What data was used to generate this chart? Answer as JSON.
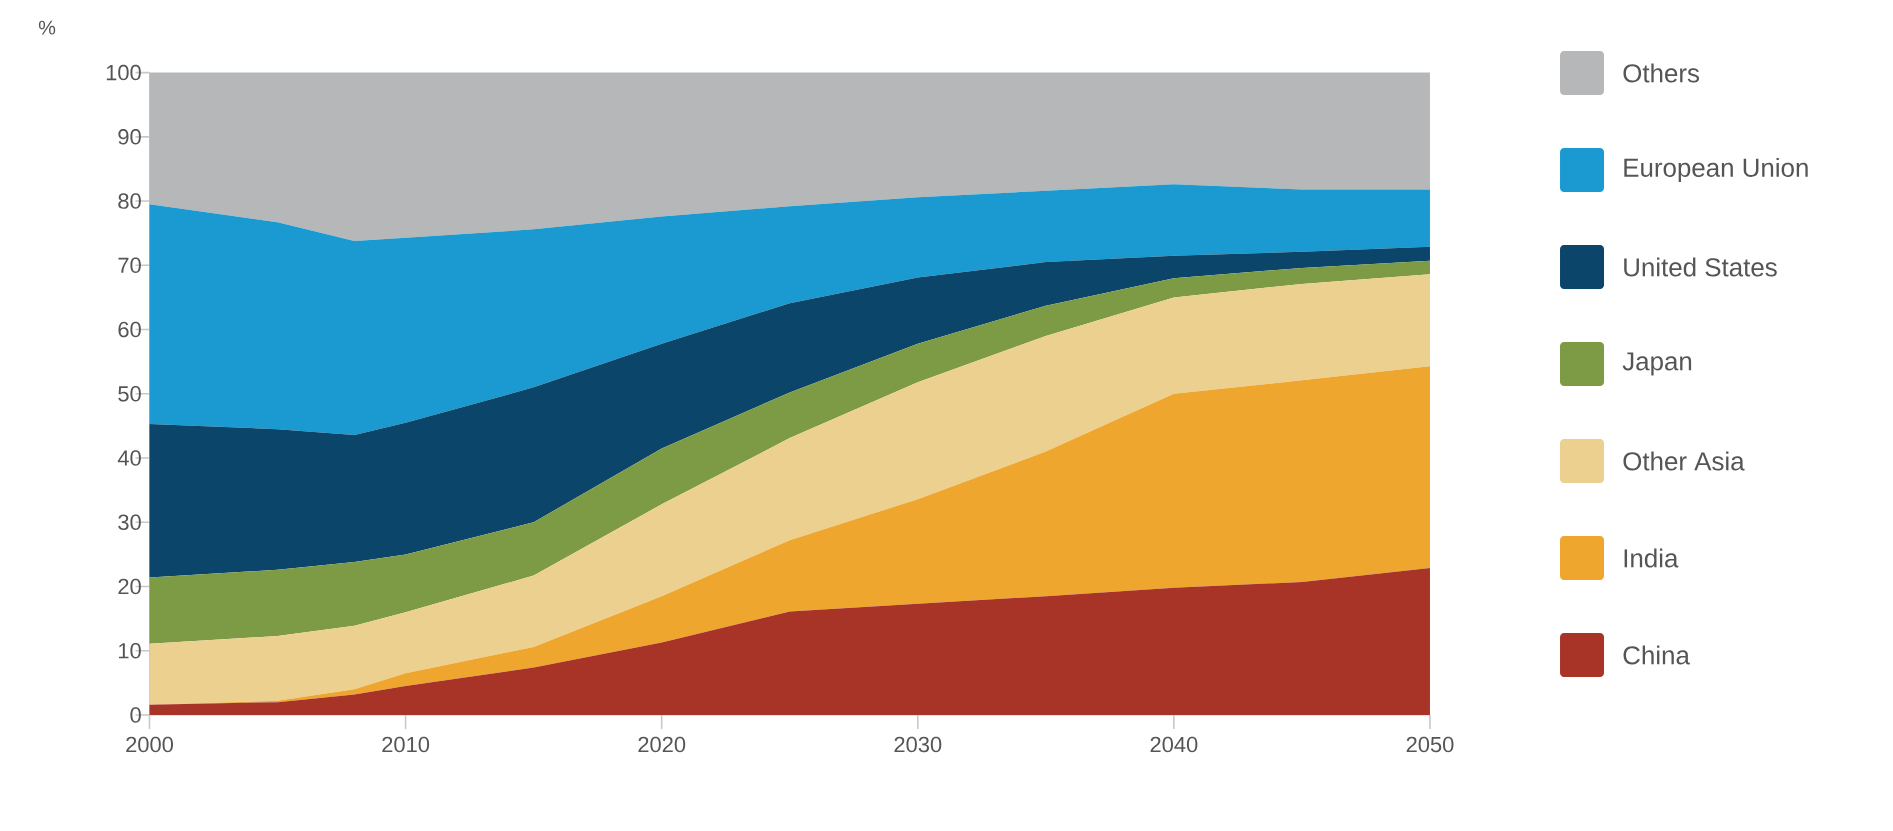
{
  "chart_data": {
    "type": "area",
    "stacked": true,
    "ylabel": "%",
    "x": [
      2000,
      2005,
      2008,
      2010,
      2015,
      2020,
      2025,
      2030,
      2035,
      2040,
      2045,
      2050
    ],
    "xlim": [
      2000,
      2050
    ],
    "xticks": [
      2000,
      2010,
      2020,
      2030,
      2040,
      2050
    ],
    "ylim": [
      0,
      100
    ],
    "yticks": [
      0,
      10,
      20,
      30,
      40,
      50,
      60,
      70,
      80,
      90,
      100
    ],
    "legend": "right",
    "series": [
      {
        "name": "China",
        "color": "#a83428",
        "values": [
          1.6,
          2.0,
          3.2,
          4.5,
          7.4,
          11.3,
          16.1,
          17.3,
          18.5,
          19.8,
          20.7,
          22.9
        ]
      },
      {
        "name": "India",
        "color": "#eea62e",
        "values": [
          0,
          0.2,
          0.8,
          2.0,
          3.2,
          7.2,
          11.1,
          16.3,
          22.5,
          30.2,
          31.4,
          31.4
        ]
      },
      {
        "name": "Other Asia",
        "color": "#ecd08f",
        "values": [
          9.5,
          10.1,
          9.9,
          9.5,
          11.1,
          14.3,
          15.9,
          18.2,
          18.0,
          15.0,
          15.0,
          14.3
        ]
      },
      {
        "name": "Japan",
        "color": "#7d9a45",
        "values": [
          10.3,
          10.3,
          9.9,
          9.0,
          8.3,
          8.7,
          7.1,
          6.0,
          4.7,
          3.0,
          2.5,
          2.1
        ]
      },
      {
        "name": "United States",
        "color": "#0b4569",
        "values": [
          23.9,
          21.9,
          19.8,
          20.5,
          21.0,
          16.3,
          13.9,
          10.3,
          6.8,
          3.5,
          2.5,
          2.2
        ]
      },
      {
        "name": "European Union",
        "color": "#1a9ad0",
        "values": [
          34.2,
          32.2,
          30.2,
          28.8,
          24.6,
          19.8,
          15.1,
          12.5,
          11.1,
          11.1,
          9.7,
          8.9
        ]
      },
      {
        "name": "Others",
        "color": "#b6b7b9",
        "values": [
          20.5,
          23.3,
          26.2,
          25.7,
          24.4,
          22.4,
          20.8,
          19.4,
          18.4,
          17.4,
          18.2,
          18.2
        ]
      }
    ]
  }
}
